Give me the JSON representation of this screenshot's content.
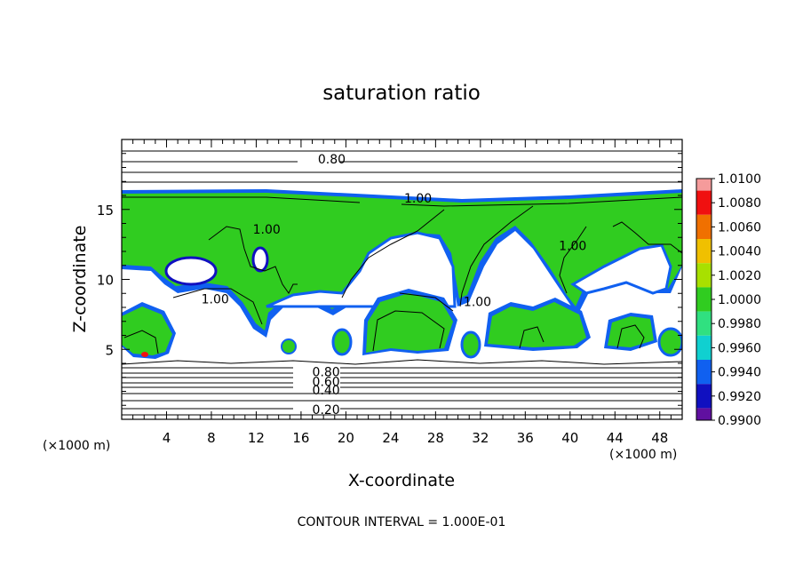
{
  "chart_data": {
    "type": "heatmap",
    "title": "saturation ratio",
    "xlabel": "X-coordinate",
    "ylabel": "Z-coordinate",
    "x_unit_left": "(×1000 m)",
    "x_unit_right": "(×1000 m)",
    "xlim": [
      0,
      50
    ],
    "ylim": [
      0,
      20
    ],
    "x_ticks": [
      {
        "value": 4,
        "label": "4"
      },
      {
        "value": 8,
        "label": "8"
      },
      {
        "value": 12,
        "label": "12"
      },
      {
        "value": 16,
        "label": "16"
      },
      {
        "value": 20,
        "label": "20"
      },
      {
        "value": 24,
        "label": "24"
      },
      {
        "value": 28,
        "label": "28"
      },
      {
        "value": 32,
        "label": "32"
      },
      {
        "value": 36,
        "label": "36"
      },
      {
        "value": 40,
        "label": "40"
      },
      {
        "value": 44,
        "label": "44"
      },
      {
        "value": 48,
        "label": "48"
      }
    ],
    "y_ticks": [
      {
        "value": 5,
        "label": "5"
      },
      {
        "value": 10,
        "label": "10"
      },
      {
        "value": 15,
        "label": "15"
      }
    ],
    "contour_interval_text": "CONTOUR INTERVAL = 1.000E-01",
    "contour_labels": [
      {
        "text": "0.80",
        "x": 17.5,
        "z": 18.6
      },
      {
        "text": "1.00",
        "x": 25.2,
        "z": 15.8
      },
      {
        "text": "1.00",
        "x": 11.7,
        "z": 13.6
      },
      {
        "text": "1.00",
        "x": 7.1,
        "z": 8.6
      },
      {
        "text": "1.00",
        "x": 30.5,
        "z": 8.4
      },
      {
        "text": "1.00",
        "x": 39.0,
        "z": 12.4
      },
      {
        "text": "0.80",
        "x": 17.0,
        "z": 3.4
      },
      {
        "text": "0.60",
        "x": 17.0,
        "z": 2.7
      },
      {
        "text": "0.40",
        "x": 17.0,
        "z": 2.1
      },
      {
        "text": "0.20",
        "x": 17.0,
        "z": 0.7
      }
    ],
    "colorbar": {
      "min": 0.99,
      "max": 1.01,
      "labels": [
        "1.0100",
        "1.0080",
        "1.0060",
        "1.0040",
        "1.0020",
        "1.0000",
        "0.9980",
        "0.9960",
        "0.9940",
        "0.9920",
        "0.9900"
      ],
      "colors": [
        "#f59b9b",
        "#f01010",
        "#f07000",
        "#f0c000",
        "#a8e000",
        "#30cc20",
        "#30e080",
        "#10d0d0",
        "#1060f0",
        "#1010c0",
        "#6010a0"
      ]
    }
  }
}
